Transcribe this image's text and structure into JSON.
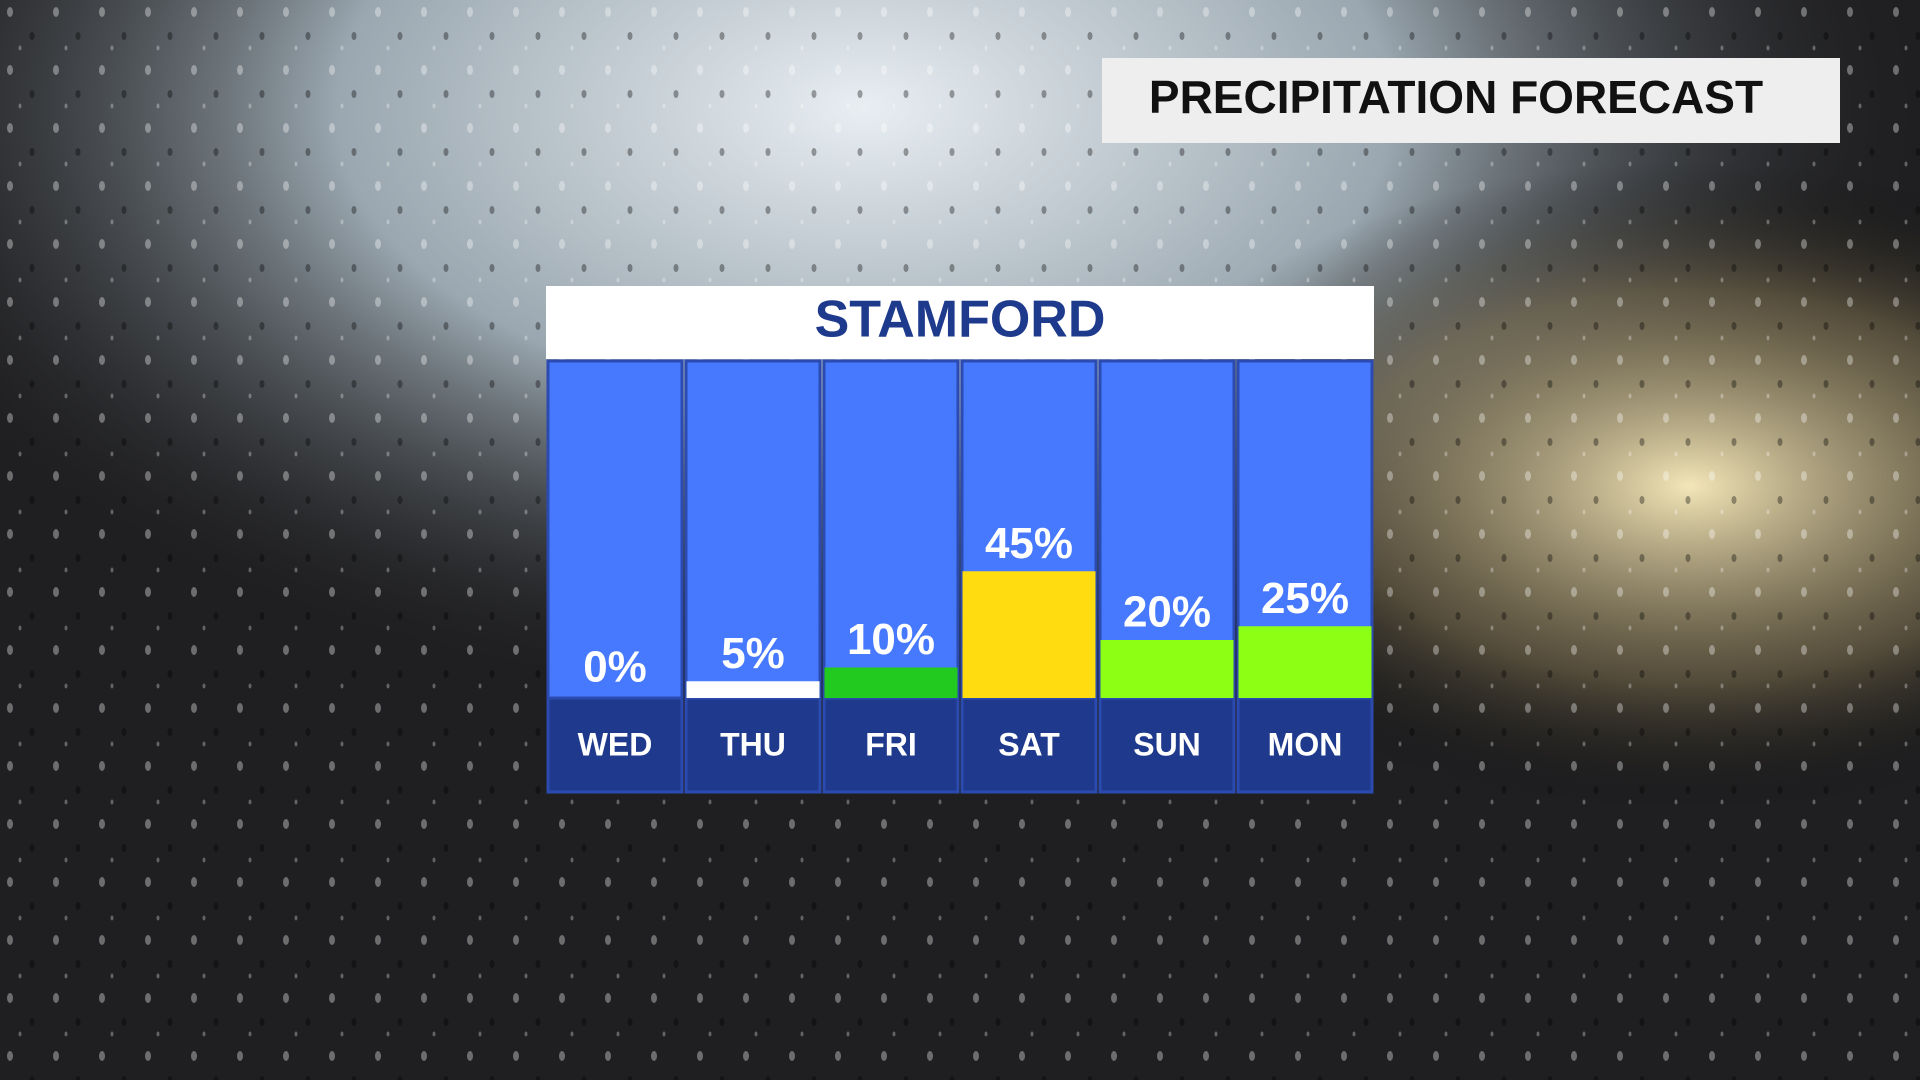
{
  "title": "PRECIPITATION FORECAST",
  "chart_data": {
    "type": "bar",
    "title": "STAMFORD",
    "categories": [
      "WED",
      "THU",
      "FRI",
      "SAT",
      "SUN",
      "MON"
    ],
    "values": [
      0,
      5,
      10,
      45,
      20,
      25
    ],
    "value_labels": [
      "0%",
      "5%",
      "10%",
      "45%",
      "20%",
      "25%"
    ],
    "colors": [
      "#ffffff",
      "#ffffff",
      "#22c91e",
      "#ffdc0f",
      "#8cff14",
      "#8cff14"
    ]
  }
}
